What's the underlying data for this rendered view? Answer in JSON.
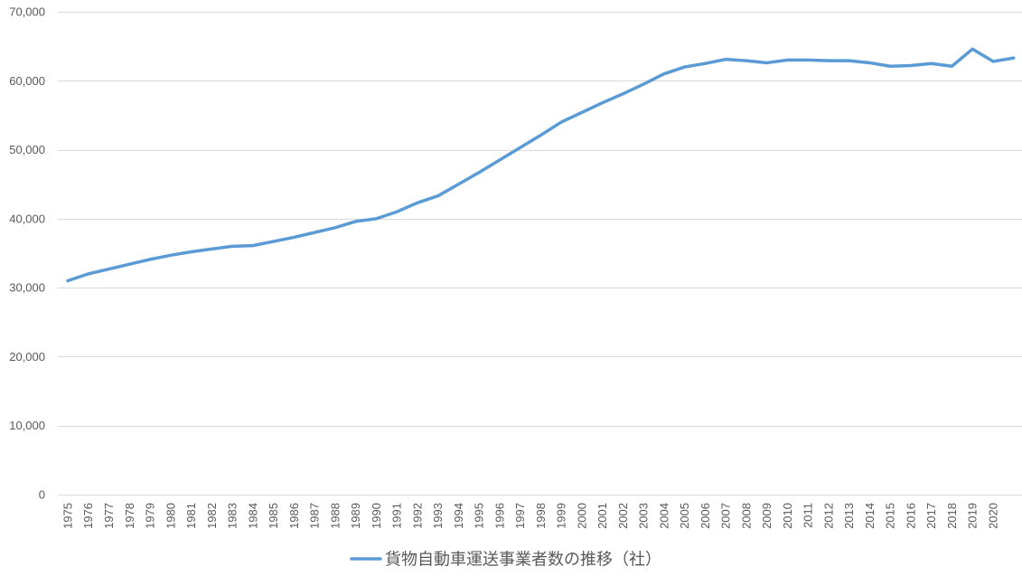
{
  "chart_data": {
    "type": "line",
    "categories": [
      "1975",
      "1976",
      "1977",
      "1978",
      "1979",
      "1980",
      "1981",
      "1982",
      "1983",
      "1984",
      "1985",
      "1986",
      "1987",
      "1988",
      "1989",
      "1990",
      "1991",
      "1992",
      "1993",
      "1994",
      "1995",
      "1996",
      "1997",
      "1998",
      "1999",
      "2000",
      "2001",
      "2002",
      "2003",
      "2004",
      "2005",
      "2006",
      "2007",
      "2008",
      "2009",
      "2010",
      "2011",
      "2012",
      "2013",
      "2014",
      "2015",
      "2016",
      "2017",
      "2018",
      "2019",
      "2020",
      ""
    ],
    "series": [
      {
        "name": "貨物自動車運送事業者数の推移（社）",
        "color": "#5b9bd5",
        "values": [
          31000,
          32000,
          32700,
          33400,
          34100,
          34700,
          35200,
          35600,
          36000,
          36100,
          36700,
          37300,
          38000,
          38700,
          39600,
          40000,
          41000,
          42300,
          43300,
          45000,
          46700,
          48500,
          50300,
          52100,
          54000,
          55400,
          56800,
          58100,
          59500,
          61000,
          62000,
          62500,
          63100,
          62900,
          62600,
          63000,
          63000,
          62900,
          62900,
          62600,
          62100,
          62200,
          62500,
          62100,
          64600,
          62800,
          63300
        ]
      }
    ],
    "ylim": [
      0,
      70000
    ],
    "yticks": [
      0,
      10000,
      20000,
      30000,
      40000,
      50000,
      60000,
      70000
    ],
    "ytick_labels": [
      "0",
      "10,000",
      "20,000",
      "30,000",
      "40,000",
      "50,000",
      "60,000",
      "70,000"
    ],
    "grid": true,
    "legend": "bottom",
    "gridline_color": "#d9d9d9",
    "text_color": "#595959"
  }
}
